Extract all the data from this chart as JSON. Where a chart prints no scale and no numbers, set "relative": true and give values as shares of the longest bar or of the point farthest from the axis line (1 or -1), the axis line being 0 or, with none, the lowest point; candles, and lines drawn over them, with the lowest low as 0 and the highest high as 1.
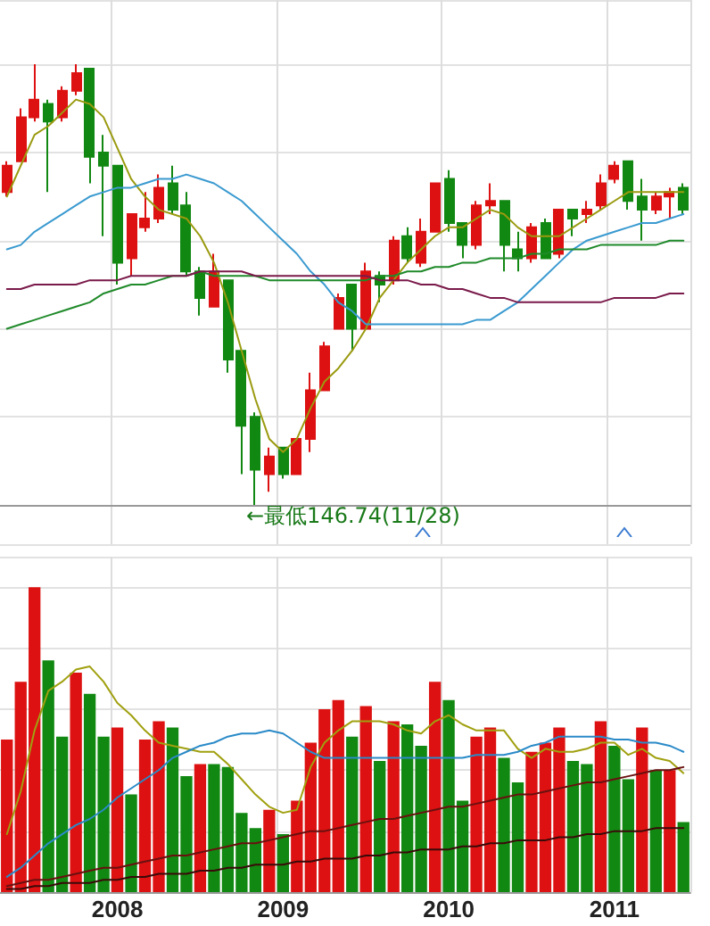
{
  "chart_data": [
    {
      "type": "candlestick",
      "relative": true,
      "tick_labels": false,
      "grid": true,
      "marker": "none",
      "categories": [
        null,
        null,
        null,
        null,
        null,
        null,
        null,
        null,
        "2008",
        null,
        null,
        null,
        null,
        null,
        null,
        null,
        null,
        null,
        null,
        null,
        "2009",
        null,
        null,
        null,
        null,
        null,
        null,
        null,
        null,
        null,
        null,
        null,
        "2010",
        null,
        null,
        null,
        null,
        null,
        null,
        null,
        null,
        null,
        null,
        null,
        "2011",
        null,
        null,
        null,
        null,
        null
      ],
      "ohlc": [
        [
          0.71,
          0.78,
          0.7,
          0.77
        ],
        [
          0.78,
          0.9,
          0.78,
          0.88
        ],
        [
          0.88,
          1.0,
          0.87,
          0.92
        ],
        [
          0.91,
          0.92,
          0.71,
          0.87
        ],
        [
          0.88,
          0.95,
          0.87,
          0.94
        ],
        [
          0.94,
          1.0,
          0.93,
          0.98
        ],
        [
          0.99,
          0.99,
          0.73,
          0.79
        ],
        [
          0.8,
          0.84,
          0.61,
          0.77
        ],
        [
          0.77,
          0.77,
          0.5,
          0.55
        ],
        [
          0.56,
          0.66,
          0.52,
          0.66
        ],
        [
          0.63,
          0.71,
          0.62,
          0.65
        ],
        [
          0.65,
          0.75,
          0.64,
          0.72
        ],
        [
          0.73,
          0.77,
          0.66,
          0.67
        ],
        [
          0.68,
          0.71,
          0.52,
          0.53
        ],
        [
          0.53,
          0.54,
          0.43,
          0.47
        ],
        [
          0.45,
          0.57,
          0.45,
          0.53
        ],
        [
          0.51,
          0.51,
          0.3,
          0.33
        ],
        [
          0.35,
          0.35,
          0.07,
          0.18
        ],
        [
          0.2,
          0.21,
          0,
          0.08
        ],
        [
          0.07,
          0.13,
          0.03,
          0.11
        ],
        [
          0.13,
          0.13,
          0.06,
          0.07
        ],
        [
          0.07,
          0.15,
          0.07,
          0.15
        ],
        [
          0.15,
          0.3,
          0.12,
          0.26
        ],
        [
          0.26,
          0.37,
          0.26,
          0.36
        ],
        [
          0.4,
          0.48,
          0.4,
          0.47
        ],
        [
          0.5,
          0.5,
          0.35,
          0.4
        ],
        [
          0.4,
          0.55,
          0.4,
          0.53
        ],
        [
          0.52,
          0.53,
          0.46,
          0.5
        ],
        [
          0.51,
          0.61,
          0.5,
          0.6
        ],
        [
          0.61,
          0.63,
          0.55,
          0.56
        ],
        [
          0.55,
          0.65,
          0.54,
          0.62
        ],
        [
          0.62,
          0.73,
          0.62,
          0.73
        ],
        [
          0.74,
          0.76,
          0.62,
          0.64
        ],
        [
          0.64,
          0.64,
          0.56,
          0.59
        ],
        [
          0.59,
          0.69,
          0.58,
          0.68
        ],
        [
          0.68,
          0.73,
          0.66,
          0.69
        ],
        [
          0.69,
          0.69,
          0.53,
          0.59
        ],
        [
          0.58,
          0.62,
          0.53,
          0.56
        ],
        [
          0.56,
          0.64,
          0.55,
          0.63
        ],
        [
          0.64,
          0.65,
          0.56,
          0.56
        ],
        [
          0.57,
          0.67,
          0.56,
          0.67
        ],
        [
          0.67,
          0.67,
          0.61,
          0.65
        ],
        [
          0.66,
          0.69,
          0.64,
          0.67
        ],
        [
          0.68,
          0.75,
          0.67,
          0.73
        ],
        [
          0.74,
          0.78,
          0.73,
          0.77
        ],
        [
          0.78,
          0.78,
          0.67,
          0.69
        ],
        [
          0.7,
          0.74,
          0.6,
          0.67
        ],
        [
          0.67,
          0.71,
          0.66,
          0.7
        ],
        [
          0.7,
          0.72,
          0.65,
          0.71
        ],
        [
          0.72,
          0.73,
          0.66,
          0.67
        ]
      ],
      "colors": [
        "#dd1111",
        "#dd1111",
        "#dd1111",
        "#118811",
        "#dd1111",
        "#dd1111",
        "#118811",
        "#118811",
        "#118811",
        "#dd1111",
        "#dd1111",
        "#dd1111",
        "#118811",
        "#118811",
        "#118811",
        "#dd1111",
        "#118811",
        "#118811",
        "#118811",
        "#dd1111",
        "#118811",
        "#dd1111",
        "#dd1111",
        "#dd1111",
        "#dd1111",
        "#118811",
        "#dd1111",
        "#118811",
        "#dd1111",
        "#118811",
        "#dd1111",
        "#dd1111",
        "#118811",
        "#118811",
        "#dd1111",
        "#dd1111",
        "#118811",
        "#118811",
        "#dd1111",
        "#118811",
        "#dd1111",
        "#118811",
        "#dd1111",
        "#dd1111",
        "#dd1111",
        "#118811",
        "#118811",
        "#dd1111",
        "#dd1111",
        "#118811"
      ],
      "series": [
        {
          "type": "line",
          "color": "#9a9a10",
          "values": [
            0.7,
            0.77,
            0.84,
            0.86,
            0.89,
            0.92,
            0.91,
            0.88,
            0.81,
            0.74,
            0.7,
            0.67,
            0.66,
            0.65,
            0.61,
            0.55,
            0.46,
            0.35,
            0.24,
            0.15,
            0.12,
            0.15,
            0.22,
            0.28,
            0.31,
            0.35,
            0.4,
            0.47,
            0.51,
            0.55,
            0.58,
            0.61,
            0.63,
            0.63,
            0.65,
            0.67,
            0.66,
            0.63,
            0.61,
            0.61,
            0.61,
            0.63,
            0.65,
            0.67,
            0.69,
            0.71,
            0.71,
            0.71,
            0.71,
            0.71
          ]
        },
        {
          "type": "line",
          "color": "#3a9ad0",
          "values": [
            0.58,
            0.59,
            0.62,
            0.64,
            0.66,
            0.68,
            0.7,
            0.71,
            0.72,
            0.72,
            0.73,
            0.74,
            0.74,
            0.75,
            0.74,
            0.73,
            0.71,
            0.69,
            0.66,
            0.63,
            0.6,
            0.57,
            0.53,
            0.5,
            0.46,
            0.44,
            0.41,
            0.41,
            0.41,
            0.41,
            0.41,
            0.41,
            0.41,
            0.41,
            0.42,
            0.42,
            0.44,
            0.46,
            0.49,
            0.52,
            0.55,
            0.58,
            0.6,
            0.61,
            0.62,
            0.63,
            0.64,
            0.64,
            0.65,
            0.66
          ]
        },
        {
          "type": "line",
          "color": "#1f8a2a",
          "values": [
            0.4,
            0.41,
            0.42,
            0.43,
            0.44,
            0.45,
            0.46,
            0.48,
            0.49,
            0.5,
            0.5,
            0.51,
            0.52,
            0.52,
            0.53,
            0.52,
            0.52,
            0.52,
            0.52,
            0.51,
            0.51,
            0.51,
            0.51,
            0.51,
            0.51,
            0.51,
            0.51,
            0.52,
            0.52,
            0.53,
            0.53,
            0.54,
            0.54,
            0.55,
            0.55,
            0.56,
            0.56,
            0.56,
            0.57,
            0.57,
            0.58,
            0.58,
            0.58,
            0.59,
            0.59,
            0.59,
            0.59,
            0.59,
            0.6,
            0.6
          ]
        },
        {
          "type": "line",
          "color": "#7a1a4a",
          "values": [
            0.49,
            0.49,
            0.5,
            0.5,
            0.5,
            0.5,
            0.51,
            0.51,
            0.51,
            0.52,
            0.52,
            0.52,
            0.52,
            0.52,
            0.53,
            0.53,
            0.53,
            0.53,
            0.52,
            0.52,
            0.52,
            0.52,
            0.52,
            0.52,
            0.52,
            0.52,
            0.52,
            0.51,
            0.51,
            0.51,
            0.5,
            0.5,
            0.49,
            0.49,
            0.48,
            0.47,
            0.47,
            0.46,
            0.46,
            0.46,
            0.46,
            0.46,
            0.46,
            0.46,
            0.47,
            0.47,
            0.47,
            0.47,
            0.48,
            0.48
          ]
        }
      ],
      "annotations": [
        "←最低146.74(11/28)"
      ]
    },
    {
      "type": "bar",
      "relative": true,
      "grid": true,
      "marker": "none",
      "categories": [
        null,
        null,
        null,
        null,
        null,
        null,
        null,
        null,
        "2008",
        null,
        null,
        null,
        null,
        null,
        null,
        null,
        null,
        null,
        null,
        null,
        "2009",
        null,
        null,
        null,
        null,
        null,
        null,
        null,
        null,
        null,
        null,
        null,
        "2010",
        null,
        null,
        null,
        null,
        null,
        null,
        null,
        null,
        null,
        null,
        null,
        "2011",
        null,
        null,
        null,
        null,
        null
      ],
      "series": [
        {
          "colors": [
            "#dd1111",
            "#dd1111",
            "#dd1111",
            "#118811",
            "#118811",
            "#dd1111",
            "#118811",
            "#118811",
            "#dd1111",
            "#118811",
            "#dd1111",
            "#dd1111",
            "#118811",
            "#118811",
            "#dd1111",
            "#118811",
            "#118811",
            "#118811",
            "#118811",
            "#dd1111",
            "#118811",
            "#dd1111",
            "#dd1111",
            "#dd1111",
            "#dd1111",
            "#118811",
            "#dd1111",
            "#118811",
            "#dd1111",
            "#118811",
            "#118811",
            "#dd1111",
            "#118811",
            "#118811",
            "#dd1111",
            "#dd1111",
            "#118811",
            "#118811",
            "#dd1111",
            "#dd1111",
            "#dd1111",
            "#118811",
            "#118811",
            "#dd1111",
            "#118811",
            "#118811",
            "#dd1111",
            "#118811",
            "#dd1111",
            "#118811"
          ],
          "values": [
            0.5,
            0.69,
            1.0,
            0.76,
            0.51,
            0.72,
            0.65,
            0.51,
            0.54,
            0.32,
            0.5,
            0.56,
            0.54,
            0.38,
            0.42,
            0.42,
            0.41,
            0.26,
            0.21,
            0.27,
            0.19,
            0.3,
            0.49,
            0.6,
            0.63,
            0.51,
            0.61,
            0.43,
            0.56,
            0.55,
            0.48,
            0.69,
            0.63,
            0.3,
            0.51,
            0.54,
            0.44,
            0.36,
            0.46,
            0.49,
            0.54,
            0.43,
            0.42,
            0.56,
            0.48,
            0.37,
            0.54,
            0.4,
            0.4,
            0.23
          ]
        },
        {
          "type": "line",
          "color": "#a0a010",
          "values": [
            0.19,
            0.33,
            0.53,
            0.66,
            0.69,
            0.73,
            0.74,
            0.69,
            0.62,
            0.58,
            0.53,
            0.49,
            0.48,
            0.47,
            0.46,
            0.46,
            0.42,
            0.37,
            0.32,
            0.28,
            0.26,
            0.27,
            0.41,
            0.49,
            0.53,
            0.56,
            0.56,
            0.56,
            0.55,
            0.53,
            0.52,
            0.56,
            0.58,
            0.55,
            0.53,
            0.53,
            0.53,
            0.47,
            0.44,
            0.47,
            0.46,
            0.46,
            0.47,
            0.49,
            0.49,
            0.45,
            0.47,
            0.44,
            0.43,
            0.39
          ]
        },
        {
          "type": "line",
          "color": "#2a8ac8",
          "values": [
            0.05,
            0.08,
            0.12,
            0.16,
            0.19,
            0.22,
            0.24,
            0.27,
            0.31,
            0.34,
            0.37,
            0.4,
            0.44,
            0.46,
            0.48,
            0.49,
            0.51,
            0.52,
            0.52,
            0.53,
            0.52,
            0.49,
            0.46,
            0.44,
            0.44,
            0.44,
            0.44,
            0.44,
            0.44,
            0.44,
            0.44,
            0.44,
            0.44,
            0.44,
            0.45,
            0.45,
            0.45,
            0.46,
            0.48,
            0.49,
            0.51,
            0.51,
            0.51,
            0.51,
            0.5,
            0.5,
            0.49,
            0.49,
            0.48,
            0.46
          ]
        },
        {
          "type": "line",
          "color": "#6a1010",
          "values": [
            0.02,
            0.03,
            0.04,
            0.04,
            0.05,
            0.06,
            0.07,
            0.08,
            0.08,
            0.09,
            0.1,
            0.11,
            0.12,
            0.12,
            0.13,
            0.14,
            0.15,
            0.16,
            0.16,
            0.17,
            0.18,
            0.19,
            0.2,
            0.2,
            0.21,
            0.22,
            0.23,
            0.24,
            0.24,
            0.25,
            0.26,
            0.27,
            0.28,
            0.28,
            0.29,
            0.3,
            0.31,
            0.32,
            0.32,
            0.33,
            0.34,
            0.35,
            0.36,
            0.36,
            0.37,
            0.38,
            0.39,
            0.4,
            0.4,
            0.41
          ]
        },
        {
          "type": "line",
          "color": "#3a0a0a",
          "values": [
            0.01,
            0.01,
            0.02,
            0.02,
            0.03,
            0.03,
            0.03,
            0.04,
            0.04,
            0.05,
            0.05,
            0.06,
            0.06,
            0.06,
            0.07,
            0.07,
            0.08,
            0.08,
            0.09,
            0.09,
            0.09,
            0.1,
            0.1,
            0.11,
            0.11,
            0.11,
            0.12,
            0.12,
            0.13,
            0.13,
            0.14,
            0.14,
            0.14,
            0.15,
            0.15,
            0.16,
            0.16,
            0.17,
            0.17,
            0.17,
            0.18,
            0.18,
            0.19,
            0.19,
            0.2,
            0.2,
            0.2,
            0.21,
            0.21,
            0.21
          ]
        }
      ]
    }
  ]
}
